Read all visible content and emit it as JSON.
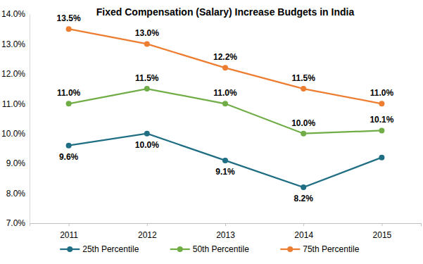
{
  "chart_data": {
    "type": "line",
    "title": "Fixed Compensation (Salary) Increase Budgets in India",
    "categories": [
      "2011",
      "2012",
      "2013",
      "2014",
      "2015"
    ],
    "series": [
      {
        "name": "25th Percentile",
        "color": "#1f6e83",
        "marker": "circle",
        "values": [
          9.6,
          10.0,
          9.1,
          8.2,
          9.2
        ],
        "value_labels": [
          "9.6%",
          "10.0%",
          "9.1%",
          "8.2%",
          null
        ]
      },
      {
        "name": "50th Percentile",
        "color": "#70ad47",
        "marker": "circle",
        "values": [
          11.0,
          11.5,
          11.0,
          10.0,
          10.1
        ],
        "value_labels": [
          "11.0%",
          "11.5%",
          "11.0%",
          "10.0%",
          "10.1%"
        ]
      },
      {
        "name": "75th Percentile",
        "color": "#ed7d31",
        "marker": "circle",
        "values": [
          13.5,
          13.0,
          12.2,
          11.5,
          11.0
        ],
        "value_labels": [
          "13.5%",
          "13.0%",
          "12.2%",
          "11.5%",
          "11.0%"
        ]
      }
    ],
    "ylim": [
      7,
      14
    ],
    "yticks": [
      {
        "value": 7,
        "label": "7.0%"
      },
      {
        "value": 8,
        "label": "8.0%"
      },
      {
        "value": 9,
        "label": "9.0%"
      },
      {
        "value": 10,
        "label": "10.0%"
      },
      {
        "value": 11,
        "label": "11.0%"
      },
      {
        "value": 12,
        "label": "12.0%"
      },
      {
        "value": 13,
        "label": "13.0%"
      },
      {
        "value": 14,
        "label": "14.0%"
      }
    ],
    "grid": false,
    "legend": "bottom",
    "data_labels": true
  }
}
